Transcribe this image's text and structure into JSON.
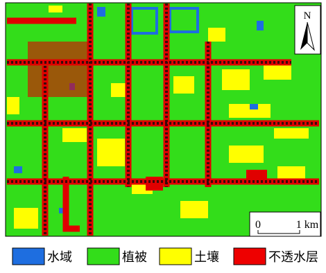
{
  "map": {
    "north_label": "N",
    "scale_bar": {
      "start": "0",
      "end": "1 km"
    }
  },
  "legend": [
    {
      "label": "水域",
      "color": "#1e6ee0"
    },
    {
      "label": "植被",
      "color": "#33dd1a"
    },
    {
      "label": "土壤",
      "color": "#ffff00"
    },
    {
      "label": "不透水层",
      "color": "#ee0000"
    }
  ]
}
